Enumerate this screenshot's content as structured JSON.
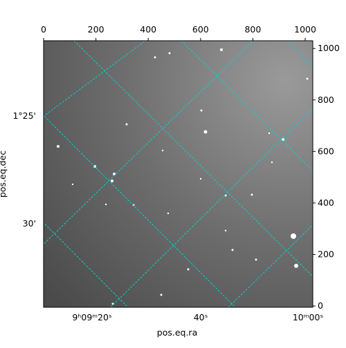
{
  "chart_data": {
    "type": "image",
    "xlabel": "pos.eq.ra",
    "ylabel": "pos.eq.dec",
    "xlim": [
      0,
      1029
    ],
    "ylim": [
      -5,
      1030
    ],
    "xticks": [
      0,
      200,
      400,
      600,
      800,
      1000
    ],
    "yticks": [
      0,
      200,
      400,
      600,
      800,
      1000
    ],
    "world_xticks": [
      "9ʰ09ᵐ20ˢ",
      "40ˢ",
      "10ᵐ00ˢ"
    ],
    "world_yticks": [
      "1°25'",
      "30'"
    ],
    "grid_color": "#00d5d5"
  }
}
